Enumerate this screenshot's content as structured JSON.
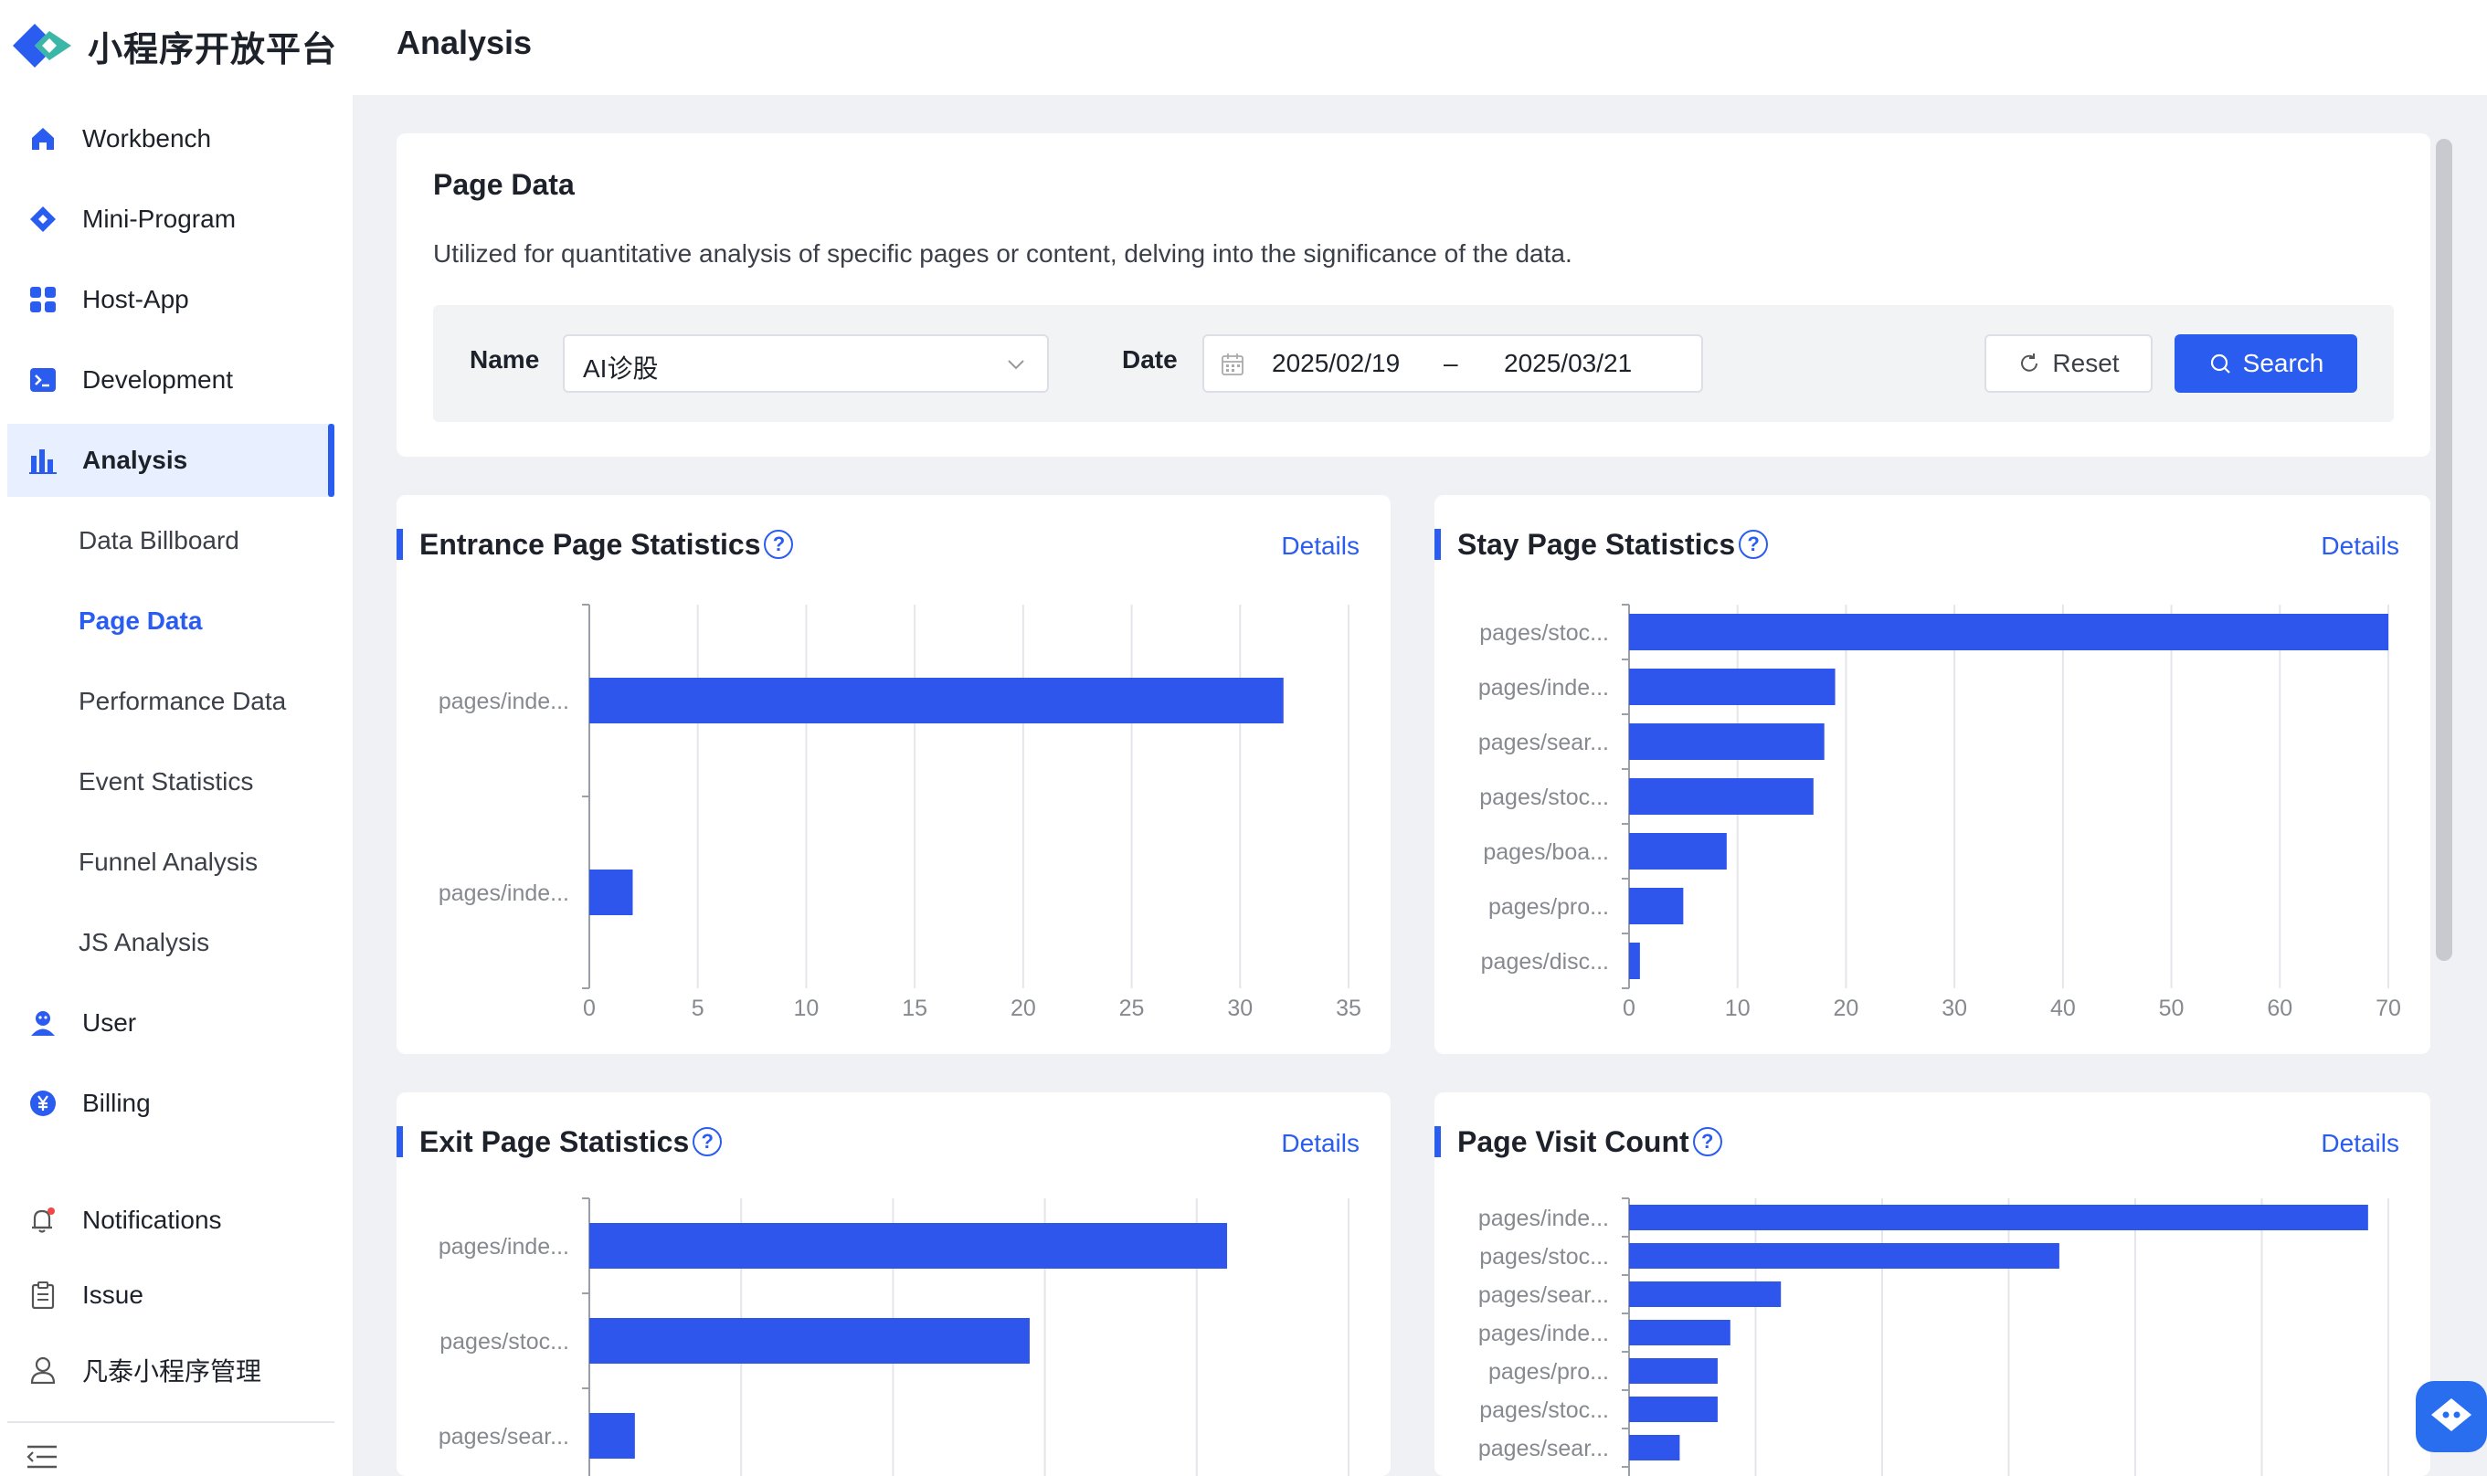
{
  "app": {
    "brand": "小程序开放平台",
    "page_title": "Analysis"
  },
  "sidebar": {
    "items": [
      {
        "label": "Workbench",
        "icon": "home-icon"
      },
      {
        "label": "Mini-Program",
        "icon": "diamond-icon"
      },
      {
        "label": "Host-App",
        "icon": "grid-icon"
      },
      {
        "label": "Development",
        "icon": "terminal-icon"
      },
      {
        "label": "Analysis",
        "icon": "bar-chart-icon",
        "active": true
      }
    ],
    "sub_items": [
      "Data Billboard",
      "Page Data",
      "Performance Data",
      "Event Statistics",
      "Funnel Analysis",
      "JS Analysis"
    ],
    "current_sub": "Page Data",
    "bottom_items": [
      {
        "label": "User",
        "icon": "user-icon"
      },
      {
        "label": "Billing",
        "icon": "yen-icon"
      },
      {
        "label": "Notifications",
        "icon": "bell-icon"
      },
      {
        "label": "Issue",
        "icon": "clipboard-icon"
      },
      {
        "label": "凡泰小程序管理",
        "icon": "person-icon"
      }
    ]
  },
  "filter": {
    "title": "Page Data",
    "description": "Utilized for quantitative analysis of specific pages or content, delving into the significance of the data.",
    "name_label": "Name",
    "name_value": "AI诊股",
    "date_label": "Date",
    "date_start": "2025/02/19",
    "date_separator": "–",
    "date_end": "2025/03/21",
    "reset_label": "Reset",
    "search_label": "Search"
  },
  "cards": {
    "details_label": "Details",
    "help_symbol": "?",
    "entrance_title": "Entrance Page Statistics",
    "stay_title": "Stay Page Statistics",
    "exit_title": "Exit Page Statistics",
    "visit_title": "Page Visit Count"
  },
  "colors": {
    "accent": "#2a5cf0",
    "bar": "#2e55ec",
    "grid": "#e5e6eb"
  },
  "chart_data": [
    {
      "type": "bar",
      "orientation": "horizontal",
      "categories": [
        "pages/inde...",
        "pages/inde..."
      ],
      "values": [
        32,
        2
      ],
      "xlim": [
        0,
        35
      ],
      "xticks": [
        0,
        5,
        10,
        15,
        20,
        25,
        30,
        35
      ]
    },
    {
      "type": "bar",
      "orientation": "horizontal",
      "categories": [
        "pages/stoc...",
        "pages/inde...",
        "pages/sear...",
        "pages/stoc...",
        "pages/boa...",
        "pages/pro...",
        "pages/disc..."
      ],
      "values": [
        70,
        19,
        18,
        17,
        9,
        5,
        1
      ],
      "xlim": [
        0,
        70
      ],
      "xticks": [
        0,
        10,
        20,
        30,
        40,
        50,
        60,
        70
      ]
    },
    {
      "type": "bar",
      "orientation": "horizontal",
      "categories": [
        "pages/inde...",
        "pages/stoc...",
        "pages/sear..."
      ],
      "values": [
        21,
        14.5,
        1.5
      ],
      "xlim": [
        0,
        25
      ],
      "xticks": [
        0,
        5,
        10,
        15,
        20,
        25
      ]
    },
    {
      "type": "bar",
      "orientation": "horizontal",
      "categories": [
        "pages/inde...",
        "pages/stoc...",
        "pages/sear...",
        "pages/inde...",
        "pages/pro...",
        "pages/stoc...",
        "pages/sear..."
      ],
      "values": [
        146,
        85,
        30,
        20,
        17.5,
        17.5,
        10
      ],
      "xlim": [
        0,
        150
      ],
      "xticks": [
        0,
        25,
        50,
        75,
        100,
        125,
        150
      ]
    }
  ]
}
